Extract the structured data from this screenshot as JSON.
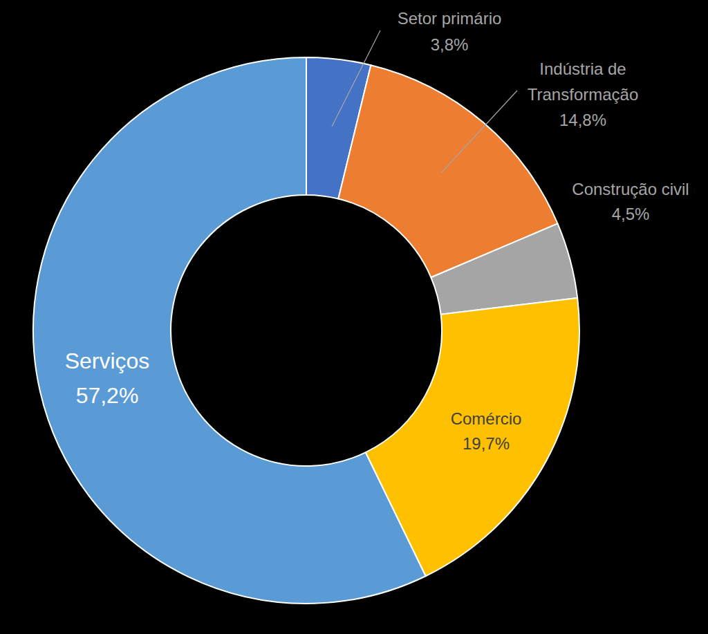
{
  "chart_data": {
    "type": "donut",
    "categories": [
      "Setor primário",
      "Indústria de Transformação",
      "Construção civil",
      "Comércio",
      "Serviços"
    ],
    "values": [
      3.8,
      14.8,
      4.5,
      19.7,
      57.2
    ],
    "value_labels": [
      "3,8%",
      "14,8%",
      "4,5%",
      "19,7%",
      "57,2%"
    ],
    "colors": [
      "#4472c4",
      "#ed7d31",
      "#a5a5a5",
      "#ffc000",
      "#5b9bd5"
    ],
    "data_labels": true
  }
}
